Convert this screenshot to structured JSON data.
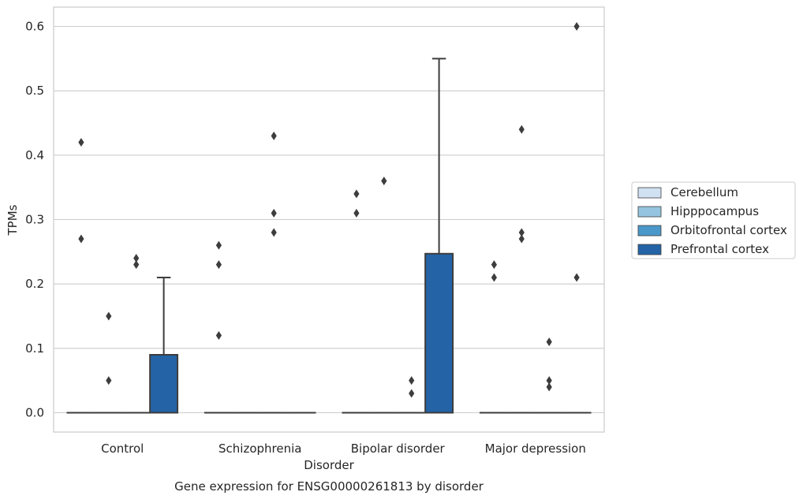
{
  "chart_data": {
    "type": "box",
    "caption": "Gene expression for ENSG00000261813 by disorder",
    "xlabel": "Disorder",
    "ylabel": "TPMs",
    "ylim": [
      -0.03,
      0.63
    ],
    "yticks": [
      0.0,
      0.1,
      0.2,
      0.3,
      0.4,
      0.5,
      0.6
    ],
    "ytick_labels": [
      "0.0",
      "0.1",
      "0.2",
      "0.3",
      "0.4",
      "0.5",
      "0.6"
    ],
    "grid": "horizontal",
    "legend_position": "right",
    "categories": [
      "Control",
      "Schizophrenia",
      "Bipolar disorder",
      "Major depression"
    ],
    "series": [
      {
        "name": "Cerebellum",
        "color": "#d0e1f2",
        "boxes": [
          {
            "q1": 0,
            "median": 0,
            "q3": 0,
            "whisker_low": 0,
            "whisker_high": 0,
            "outliers": [
              0.42,
              0.27
            ]
          },
          {
            "q1": 0,
            "median": 0,
            "q3": 0,
            "whisker_low": 0,
            "whisker_high": 0,
            "outliers": [
              0.26,
              0.23,
              0.12
            ]
          },
          {
            "q1": 0,
            "median": 0,
            "q3": 0,
            "whisker_low": 0,
            "whisker_high": 0,
            "outliers": [
              0.34,
              0.31
            ]
          },
          {
            "q1": 0,
            "median": 0,
            "q3": 0,
            "whisker_low": 0,
            "whisker_high": 0,
            "outliers": [
              0.23,
              0.21
            ]
          }
        ]
      },
      {
        "name": "Hipppocampus",
        "color": "#94c4df",
        "boxes": [
          {
            "q1": 0,
            "median": 0,
            "q3": 0,
            "whisker_low": 0,
            "whisker_high": 0,
            "outliers": [
              0.15,
              0.05
            ]
          },
          {
            "q1": 0,
            "median": 0,
            "q3": 0,
            "whisker_low": 0,
            "whisker_high": 0,
            "outliers": []
          },
          {
            "q1": 0,
            "median": 0,
            "q3": 0,
            "whisker_low": 0,
            "whisker_high": 0,
            "outliers": [
              0.36
            ]
          },
          {
            "q1": 0,
            "median": 0,
            "q3": 0,
            "whisker_low": 0,
            "whisker_high": 0,
            "outliers": [
              0.44,
              0.28,
              0.27
            ]
          }
        ]
      },
      {
        "name": "Orbitofrontal cortex",
        "color": "#4a98c9",
        "boxes": [
          {
            "q1": 0,
            "median": 0,
            "q3": 0,
            "whisker_low": 0,
            "whisker_high": 0,
            "outliers": [
              0.24,
              0.23
            ]
          },
          {
            "q1": 0,
            "median": 0,
            "q3": 0,
            "whisker_low": 0,
            "whisker_high": 0,
            "outliers": [
              0.43,
              0.31,
              0.28
            ]
          },
          {
            "q1": 0,
            "median": 0,
            "q3": 0,
            "whisker_low": 0,
            "whisker_high": 0,
            "outliers": [
              0.05,
              0.03
            ]
          },
          {
            "q1": 0,
            "median": 0,
            "q3": 0,
            "whisker_low": 0,
            "whisker_high": 0,
            "outliers": [
              0.11,
              0.05,
              0.04
            ]
          }
        ]
      },
      {
        "name": "Prefrontal cortex",
        "color": "#2363a6",
        "boxes": [
          {
            "q1": 0,
            "median": 0,
            "q3": 0.09,
            "whisker_low": 0,
            "whisker_high": 0.21,
            "outliers": []
          },
          {
            "q1": 0,
            "median": 0,
            "q3": 0,
            "whisker_low": 0,
            "whisker_high": 0,
            "outliers": []
          },
          {
            "q1": 0,
            "median": 0,
            "q3": 0.247,
            "whisker_low": 0,
            "whisker_high": 0.55,
            "outliers": []
          },
          {
            "q1": 0,
            "median": 0,
            "q3": 0,
            "whisker_low": 0,
            "whisker_high": 0,
            "outliers": [
              0.6,
              0.21
            ]
          }
        ]
      }
    ]
  }
}
